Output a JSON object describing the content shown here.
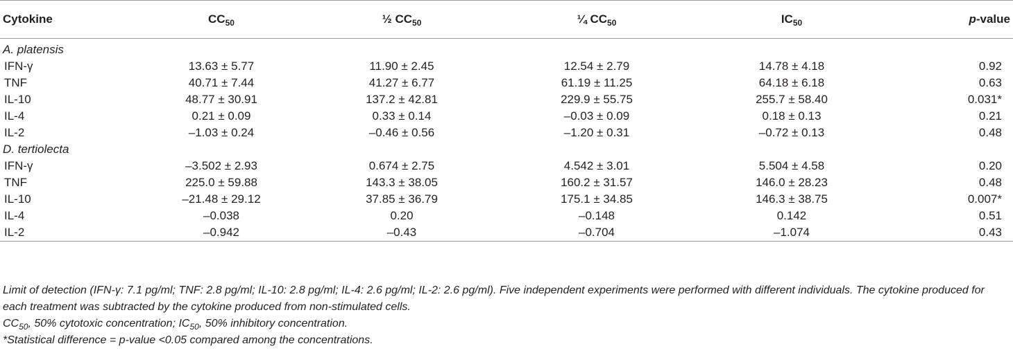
{
  "header": {
    "cytokine": "Cytokine",
    "cc50_base": "CC",
    "half_prefix": "½ CC",
    "quarter_prefix": "¼ CC",
    "ic50_base": "IC",
    "subscript": "50",
    "pvalue_italic": "p",
    "pvalue_rest": "-value"
  },
  "groups": [
    {
      "name": "A. platensis",
      "rows": [
        {
          "cytokine": "IFN-γ",
          "cc50": "13.63 ± 5.77",
          "half_cc50": "11.90 ± 2.45",
          "quarter_cc50": "12.54 ± 2.79",
          "ic50": "14.78 ± 4.18",
          "p_value": "0.92"
        },
        {
          "cytokine": "TNF",
          "cc50": "40.71 ± 7.44",
          "half_cc50": "41.27 ± 6.77",
          "quarter_cc50": "61.19 ± 11.25",
          "ic50": "64.18 ± 6.18",
          "p_value": "0.63"
        },
        {
          "cytokine": "IL-10",
          "cc50": "48.77 ± 30.91",
          "half_cc50": "137.2 ± 42.81",
          "quarter_cc50": "229.9 ± 55.75",
          "ic50": "255.7 ± 58.40",
          "p_value": "0.031*"
        },
        {
          "cytokine": "IL-4",
          "cc50": "0.21 ± 0.09",
          "half_cc50": "0.33 ± 0.14",
          "quarter_cc50": "–0.03 ± 0.09",
          "ic50": "0.18 ± 0.13",
          "p_value": "0.21"
        },
        {
          "cytokine": "IL-2",
          "cc50": "–1.03 ± 0.24",
          "half_cc50": "–0.46 ± 0.56",
          "quarter_cc50": "–1.20 ± 0.31",
          "ic50": "–0.72 ± 0.13",
          "p_value": "0.48"
        }
      ]
    },
    {
      "name": "D. tertiolecta",
      "rows": [
        {
          "cytokine": "IFN-γ",
          "cc50": "–3.502 ± 2.93",
          "half_cc50": "0.674 ± 2.75",
          "quarter_cc50": "4.542 ± 3.01",
          "ic50": "5.504 ± 4.58",
          "p_value": "0.20"
        },
        {
          "cytokine": "TNF",
          "cc50": "225.0 ± 59.88",
          "half_cc50": "143.3 ± 38.05",
          "quarter_cc50": "160.2 ± 31.57",
          "ic50": "146.0 ± 28.23",
          "p_value": "0.48"
        },
        {
          "cytokine": "IL-10",
          "cc50": "–21.48 ± 29.12",
          "half_cc50": "37.85 ± 36.79",
          "quarter_cc50": "175.1 ± 34.85",
          "ic50": "146.3 ± 38.75",
          "p_value": "0.007*"
        },
        {
          "cytokine": "IL-4",
          "cc50": "–0.038",
          "half_cc50": "0.20",
          "quarter_cc50": "–0.148",
          "ic50": "0.142",
          "p_value": "0.51"
        },
        {
          "cytokine": "IL-2",
          "cc50": "–0.942",
          "half_cc50": "–0.43",
          "quarter_cc50": "–0.704",
          "ic50": "–1.074",
          "p_value": "0.43"
        }
      ]
    }
  ],
  "notes": {
    "line1": "Limit of detection (IFN-γ: 7.1 pg/ml; TNF: 2.8 pg/ml; IL-10: 2.8 pg/ml; IL-4: 2.6 pg/ml; IL-2: 2.6 pg/ml). Five independent experiments were performed with different individuals. The cytokine produced for each treatment was subtracted by the cytokine produced from non-stimulated cells.",
    "line2_cc": "CC",
    "line2_mid": ", 50% cytotoxic concentration; IC",
    "line2_end": ", 50% inhibitory concentration.",
    "subscript": "50",
    "line3": "*Statistical difference = p-value <0.05 compared among the concentrations."
  }
}
